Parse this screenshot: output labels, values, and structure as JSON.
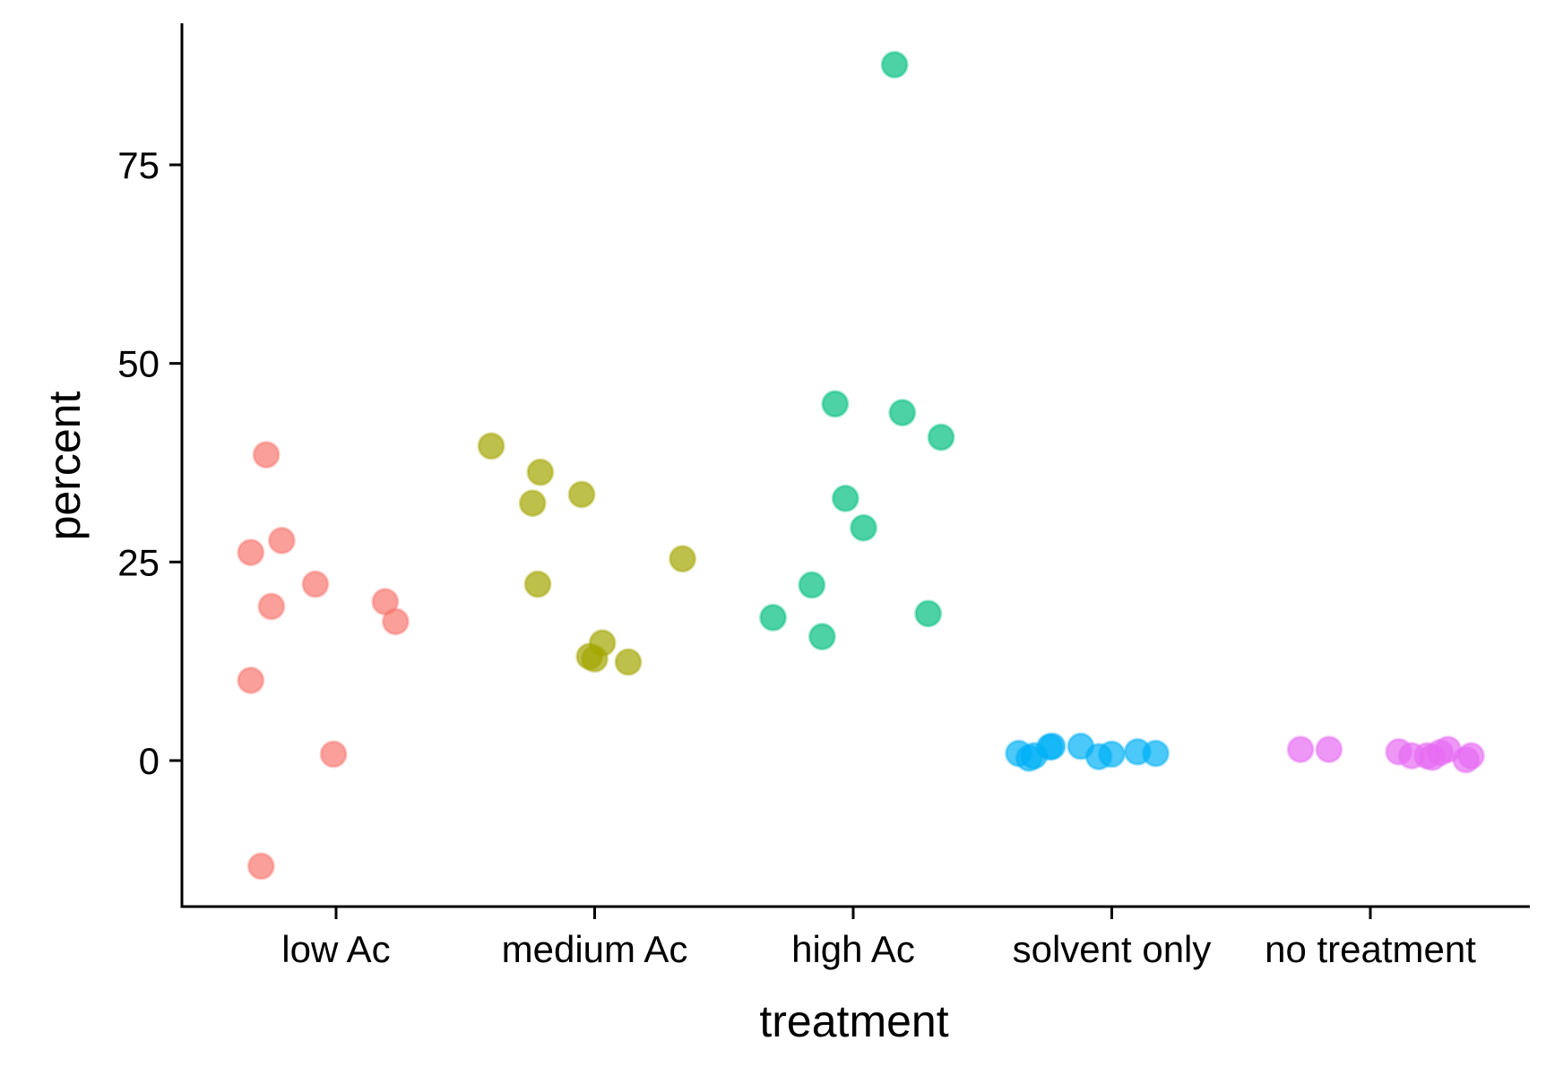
{
  "chart_data": {
    "type": "scatter",
    "title": "",
    "xlabel": "treatment",
    "ylabel": "percent",
    "categories": [
      "low Ac",
      "medium Ac",
      "high Ac",
      "solvent only",
      "no treatment"
    ],
    "yticks": [
      0,
      25,
      50,
      75
    ],
    "ytick_labels": [
      "0",
      "25",
      "50",
      "75"
    ],
    "ylim": [
      -18,
      93
    ],
    "grid": false,
    "legend": "none",
    "colors": [
      "#F8766D",
      "#A3A500",
      "#00BF7D",
      "#00B0F6",
      "#E76BF3"
    ],
    "series": [
      {
        "category": "low Ac",
        "color": "#F8766D",
        "points": [
          {
            "jitter": -0.33,
            "y": 26.2
          },
          {
            "jitter": -0.27,
            "y": 38.5
          },
          {
            "jitter": -0.21,
            "y": 27.7
          },
          {
            "jitter": -0.25,
            "y": 19.4
          },
          {
            "jitter": -0.08,
            "y": 22.2
          },
          {
            "jitter": 0.19,
            "y": 20.0
          },
          {
            "jitter": 0.23,
            "y": 17.5
          },
          {
            "jitter": -0.33,
            "y": 10.1
          },
          {
            "jitter": -0.01,
            "y": 0.8
          },
          {
            "jitter": -0.29,
            "y": -13.3
          }
        ]
      },
      {
        "category": "medium Ac",
        "color": "#A3A500",
        "points": [
          {
            "jitter": -0.4,
            "y": 39.6
          },
          {
            "jitter": -0.21,
            "y": 36.3
          },
          {
            "jitter": -0.24,
            "y": 32.4
          },
          {
            "jitter": -0.05,
            "y": 33.5
          },
          {
            "jitter": -0.22,
            "y": 22.2
          },
          {
            "jitter": 0.34,
            "y": 25.4
          },
          {
            "jitter": 0.03,
            "y": 14.8
          },
          {
            "jitter": -0.02,
            "y": 13.1
          },
          {
            "jitter": 0.0,
            "y": 12.8
          },
          {
            "jitter": 0.13,
            "y": 12.4
          }
        ]
      },
      {
        "category": "high Ac",
        "color": "#00BF7D",
        "points": [
          {
            "jitter": 0.16,
            "y": 87.6
          },
          {
            "jitter": -0.07,
            "y": 44.9
          },
          {
            "jitter": 0.19,
            "y": 43.8
          },
          {
            "jitter": 0.34,
            "y": 40.7
          },
          {
            "jitter": -0.03,
            "y": 33.0
          },
          {
            "jitter": 0.04,
            "y": 29.3
          },
          {
            "jitter": -0.16,
            "y": 22.1
          },
          {
            "jitter": 0.29,
            "y": 18.5
          },
          {
            "jitter": -0.31,
            "y": 18.0
          },
          {
            "jitter": -0.12,
            "y": 15.6
          }
        ]
      },
      {
        "category": "solvent only",
        "color": "#00B0F6",
        "points": [
          {
            "jitter": -0.36,
            "y": 0.9
          },
          {
            "jitter": -0.32,
            "y": 0.3
          },
          {
            "jitter": -0.3,
            "y": 0.6
          },
          {
            "jitter": -0.23,
            "y": 1.8
          },
          {
            "jitter": -0.24,
            "y": 1.7
          },
          {
            "jitter": -0.12,
            "y": 1.8
          },
          {
            "jitter": -0.05,
            "y": 0.5
          },
          {
            "jitter": 0.0,
            "y": 0.8
          },
          {
            "jitter": 0.1,
            "y": 1.1
          },
          {
            "jitter": 0.17,
            "y": 0.9
          }
        ]
      },
      {
        "category": "no treatment",
        "color": "#E76BF3",
        "points": [
          {
            "jitter": -0.27,
            "y": 1.4
          },
          {
            "jitter": -0.16,
            "y": 1.4
          },
          {
            "jitter": 0.11,
            "y": 1.1
          },
          {
            "jitter": 0.16,
            "y": 0.6
          },
          {
            "jitter": 0.22,
            "y": 0.6
          },
          {
            "jitter": 0.24,
            "y": 0.4
          },
          {
            "jitter": 0.27,
            "y": 1.0
          },
          {
            "jitter": 0.3,
            "y": 1.4
          },
          {
            "jitter": 0.37,
            "y": 0.1
          },
          {
            "jitter": 0.39,
            "y": 0.6
          }
        ]
      }
    ]
  }
}
